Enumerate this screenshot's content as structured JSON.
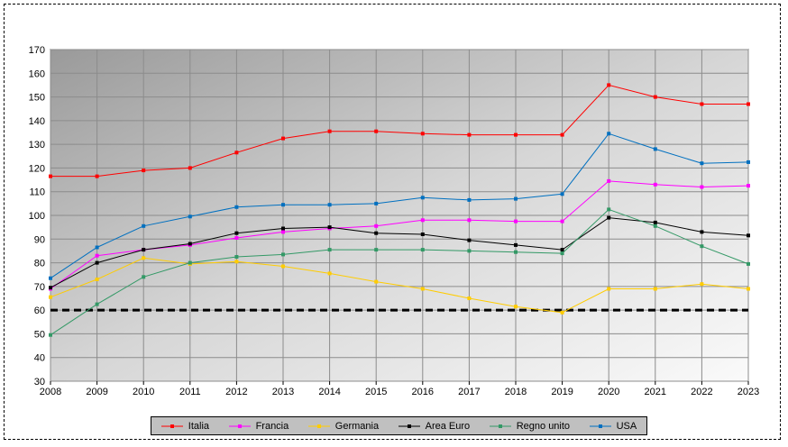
{
  "chart_data": {
    "type": "line",
    "title": "",
    "xlabel": "",
    "ylabel": "",
    "x": [
      "2008",
      "2009",
      "2010",
      "2011",
      "2012",
      "2013",
      "2014",
      "2015",
      "2016",
      "2017",
      "2018",
      "2019",
      "2020",
      "2021",
      "2022",
      "2023"
    ],
    "ylim": [
      30,
      170
    ],
    "yticks": [
      30,
      40,
      50,
      60,
      70,
      80,
      90,
      100,
      110,
      120,
      130,
      140,
      150,
      160,
      170
    ],
    "grid": true,
    "legend_position": "bottom",
    "reference_line": {
      "y": 60,
      "style": "dashed",
      "color": "#000000"
    },
    "series": [
      {
        "name": "Italia",
        "color": "#ff0000",
        "values": [
          116.5,
          116.5,
          119,
          120,
          126.5,
          132.5,
          135.5,
          135.5,
          134.5,
          134,
          134,
          134,
          155,
          150,
          147,
          147
        ]
      },
      {
        "name": "Francia",
        "color": "#ff00ff",
        "values": [
          69,
          83,
          85.5,
          87.5,
          90.5,
          93,
          94.5,
          95.5,
          98,
          98,
          97.5,
          97.5,
          114.5,
          113,
          112,
          112.5
        ]
      },
      {
        "name": "Germania",
        "color": "#ffcc00",
        "values": [
          65.5,
          73,
          82,
          79.5,
          80.5,
          78.5,
          75.5,
          72,
          69,
          65,
          61.5,
          59,
          69,
          69,
          71,
          69
        ]
      },
      {
        "name": "Area Euro",
        "color": "#000000",
        "values": [
          69.5,
          80,
          85.5,
          88,
          92.5,
          94.5,
          95,
          92.5,
          92,
          89.5,
          87.5,
          85.5,
          99,
          97,
          93,
          91.5
        ]
      },
      {
        "name": "Regno unito",
        "color": "#339966",
        "values": [
          49.5,
          62.5,
          74,
          80,
          82.5,
          83.5,
          85.5,
          85.5,
          85.5,
          85,
          84.5,
          84,
          102.5,
          95.5,
          87,
          79.5
        ]
      },
      {
        "name": "USA",
        "color": "#0070c0",
        "values": [
          73.5,
          86.5,
          95.5,
          99.5,
          103.5,
          104.5,
          104.5,
          105,
          107.5,
          106.5,
          107,
          109,
          134.5,
          128,
          122,
          122.5
        ]
      }
    ]
  }
}
